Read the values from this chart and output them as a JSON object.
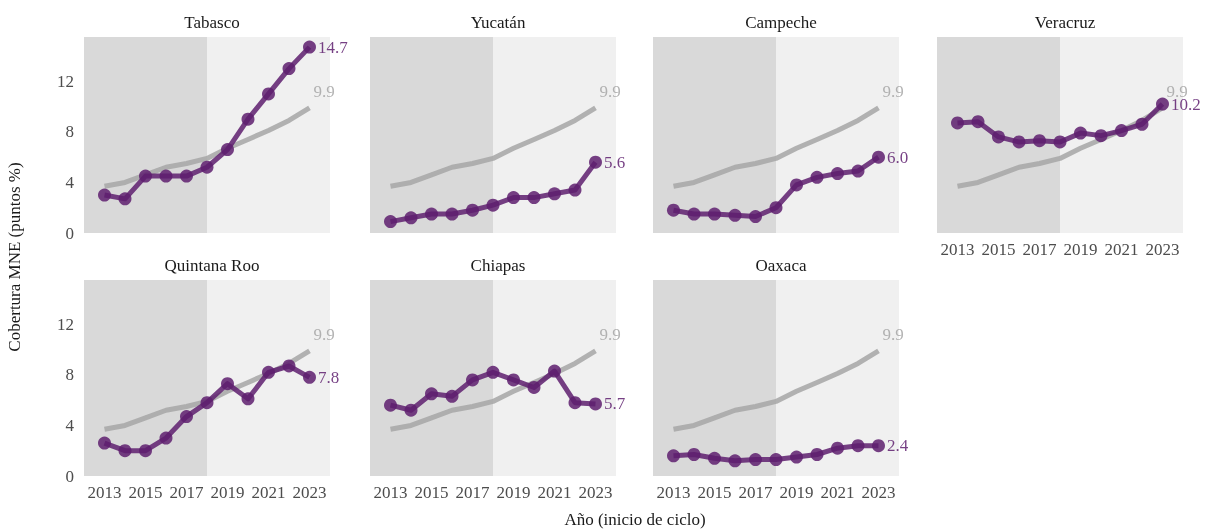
{
  "chart_data": [
    {
      "type": "line",
      "title": "Tabasco",
      "ylabel": "Cobertura MNE (puntos %)",
      "x": [
        2013,
        2014,
        2015,
        2016,
        2017,
        2018,
        2019,
        2020,
        2021,
        2022,
        2023
      ],
      "xlim": [
        2012,
        2024
      ],
      "xticks": [
        2013,
        2015,
        2017,
        2019,
        2021,
        2023
      ],
      "ylim": [
        0,
        15.5
      ],
      "yticks": [
        0,
        4,
        8,
        12
      ],
      "grid": false,
      "tick_labels": "y",
      "bands": [
        {
          "axis": "x",
          "from": 2012,
          "to": 2018,
          "color": "#d9d9d9"
        },
        {
          "axis": "x",
          "from": 2018,
          "to": 2024,
          "color": "#f0f0f0"
        }
      ],
      "series": [
        {
          "color": "#a6a6a6",
          "marker": "none",
          "values": [
            3.7,
            4.0,
            4.6,
            5.2,
            5.5,
            5.9,
            6.7,
            7.4,
            8.1,
            8.9,
            9.9
          ],
          "value_labels": [
            null,
            null,
            null,
            null,
            null,
            null,
            null,
            null,
            null,
            null,
            "9.9"
          ]
        },
        {
          "color": "#5e1f6e",
          "marker": "circle",
          "values": [
            3.0,
            2.7,
            4.5,
            4.5,
            4.5,
            5.2,
            6.6,
            9.0,
            11.0,
            13.0,
            14.7
          ],
          "value_labels": [
            null,
            null,
            null,
            null,
            null,
            null,
            null,
            null,
            null,
            null,
            "14.7"
          ]
        }
      ]
    },
    {
      "type": "line",
      "title": "Yucatán",
      "x": [
        2013,
        2014,
        2015,
        2016,
        2017,
        2018,
        2019,
        2020,
        2021,
        2022,
        2023
      ],
      "xlim": [
        2012,
        2024
      ],
      "xticks": [
        2013,
        2015,
        2017,
        2019,
        2021,
        2023
      ],
      "ylim": [
        0,
        15.5
      ],
      "yticks": [
        0,
        4,
        8,
        12
      ],
      "grid": false,
      "tick_labels": false,
      "bands": [
        {
          "axis": "x",
          "from": 2012,
          "to": 2018,
          "color": "#d9d9d9"
        },
        {
          "axis": "x",
          "from": 2018,
          "to": 2024,
          "color": "#f0f0f0"
        }
      ],
      "series": [
        {
          "color": "#a6a6a6",
          "marker": "none",
          "values": [
            3.7,
            4.0,
            4.6,
            5.2,
            5.5,
            5.9,
            6.7,
            7.4,
            8.1,
            8.9,
            9.9
          ],
          "value_labels": [
            null,
            null,
            null,
            null,
            null,
            null,
            null,
            null,
            null,
            null,
            "9.9"
          ]
        },
        {
          "color": "#5e1f6e",
          "marker": "circle",
          "values": [
            0.9,
            1.2,
            1.5,
            1.5,
            1.8,
            2.2,
            2.8,
            2.8,
            3.1,
            3.4,
            5.6
          ],
          "value_labels": [
            null,
            null,
            null,
            null,
            null,
            null,
            null,
            null,
            null,
            null,
            "5.6"
          ]
        }
      ]
    },
    {
      "type": "line",
      "title": "Campeche",
      "x": [
        2013,
        2014,
        2015,
        2016,
        2017,
        2018,
        2019,
        2020,
        2021,
        2022,
        2023
      ],
      "xlim": [
        2012,
        2024
      ],
      "xticks": [
        2013,
        2015,
        2017,
        2019,
        2021,
        2023
      ],
      "ylim": [
        0,
        15.5
      ],
      "yticks": [
        0,
        4,
        8,
        12
      ],
      "grid": false,
      "tick_labels": false,
      "bands": [
        {
          "axis": "x",
          "from": 2012,
          "to": 2018,
          "color": "#d9d9d9"
        },
        {
          "axis": "x",
          "from": 2018,
          "to": 2024,
          "color": "#f0f0f0"
        }
      ],
      "series": [
        {
          "color": "#a6a6a6",
          "marker": "none",
          "values": [
            3.7,
            4.0,
            4.6,
            5.2,
            5.5,
            5.9,
            6.7,
            7.4,
            8.1,
            8.9,
            9.9
          ],
          "value_labels": [
            null,
            null,
            null,
            null,
            null,
            null,
            null,
            null,
            null,
            null,
            "9.9"
          ]
        },
        {
          "color": "#5e1f6e",
          "marker": "circle",
          "values": [
            1.8,
            1.5,
            1.5,
            1.4,
            1.3,
            2.0,
            3.8,
            4.4,
            4.7,
            4.9,
            6.0
          ],
          "value_labels": [
            null,
            null,
            null,
            null,
            null,
            null,
            null,
            null,
            null,
            null,
            "6.0"
          ]
        }
      ]
    },
    {
      "type": "line",
      "title": "Veracruz",
      "x": [
        2013,
        2014,
        2015,
        2016,
        2017,
        2018,
        2019,
        2020,
        2021,
        2022,
        2023
      ],
      "xlim": [
        2012,
        2024
      ],
      "xticks": [
        2013,
        2015,
        2017,
        2019,
        2021,
        2023
      ],
      "ylim": [
        0,
        15.5
      ],
      "yticks": [
        0,
        4,
        8,
        12
      ],
      "grid": false,
      "tick_labels": "x",
      "bands": [
        {
          "axis": "x",
          "from": 2012,
          "to": 2018,
          "color": "#d9d9d9"
        },
        {
          "axis": "x",
          "from": 2018,
          "to": 2024,
          "color": "#f0f0f0"
        }
      ],
      "series": [
        {
          "color": "#a6a6a6",
          "marker": "none",
          "values": [
            3.7,
            4.0,
            4.6,
            5.2,
            5.5,
            5.9,
            6.7,
            7.4,
            8.1,
            8.9,
            9.9
          ],
          "value_labels": [
            null,
            null,
            null,
            null,
            null,
            null,
            null,
            null,
            null,
            null,
            "9.9"
          ]
        },
        {
          "color": "#5e1f6e",
          "marker": "circle",
          "values": [
            8.7,
            8.8,
            7.6,
            7.2,
            7.3,
            7.2,
            7.9,
            7.7,
            8.1,
            8.6,
            10.2
          ],
          "value_labels": [
            null,
            null,
            null,
            null,
            null,
            null,
            null,
            null,
            null,
            null,
            "10.2"
          ]
        }
      ]
    },
    {
      "type": "line",
      "title": "Quintana Roo",
      "x": [
        2013,
        2014,
        2015,
        2016,
        2017,
        2018,
        2019,
        2020,
        2021,
        2022,
        2023
      ],
      "xlim": [
        2012,
        2024
      ],
      "xticks": [
        2013,
        2015,
        2017,
        2019,
        2021,
        2023
      ],
      "ylim": [
        0,
        15.5
      ],
      "yticks": [
        0,
        4,
        8,
        12
      ],
      "grid": false,
      "bands": [
        {
          "axis": "x",
          "from": 2012,
          "to": 2018,
          "color": "#d9d9d9"
        },
        {
          "axis": "x",
          "from": 2018,
          "to": 2024,
          "color": "#f0f0f0"
        }
      ],
      "series": [
        {
          "color": "#a6a6a6",
          "marker": "none",
          "values": [
            3.7,
            4.0,
            4.6,
            5.2,
            5.5,
            5.9,
            6.7,
            7.4,
            8.1,
            8.9,
            9.9
          ],
          "value_labels": [
            null,
            null,
            null,
            null,
            null,
            null,
            null,
            null,
            null,
            null,
            "9.9"
          ]
        },
        {
          "color": "#5e1f6e",
          "marker": "circle",
          "values": [
            2.6,
            2.0,
            2.0,
            3.0,
            4.7,
            5.8,
            7.3,
            6.1,
            8.2,
            8.7,
            7.8
          ],
          "value_labels": [
            null,
            null,
            null,
            null,
            null,
            null,
            null,
            null,
            null,
            null,
            "7.8"
          ]
        }
      ]
    },
    {
      "type": "line",
      "title": "Chiapas",
      "xlabel": "Año (inicio de ciclo)",
      "x": [
        2013,
        2014,
        2015,
        2016,
        2017,
        2018,
        2019,
        2020,
        2021,
        2022,
        2023
      ],
      "xlim": [
        2012,
        2024
      ],
      "xticks": [
        2013,
        2015,
        2017,
        2019,
        2021,
        2023
      ],
      "ylim": [
        0,
        15.5
      ],
      "yticks": [
        0,
        4,
        8,
        12
      ],
      "grid": false,
      "tick_labels": "x",
      "bands": [
        {
          "axis": "x",
          "from": 2012,
          "to": 2018,
          "color": "#d9d9d9"
        },
        {
          "axis": "x",
          "from": 2018,
          "to": 2024,
          "color": "#f0f0f0"
        }
      ],
      "series": [
        {
          "color": "#a6a6a6",
          "marker": "none",
          "values": [
            3.7,
            4.0,
            4.6,
            5.2,
            5.5,
            5.9,
            6.7,
            7.4,
            8.1,
            8.9,
            9.9
          ],
          "value_labels": [
            null,
            null,
            null,
            null,
            null,
            null,
            null,
            null,
            null,
            null,
            "9.9"
          ]
        },
        {
          "color": "#5e1f6e",
          "marker": "circle",
          "values": [
            5.6,
            5.2,
            6.5,
            6.3,
            7.6,
            8.2,
            7.6,
            7.0,
            8.3,
            5.8,
            5.7
          ],
          "value_labels": [
            null,
            null,
            null,
            null,
            null,
            null,
            null,
            null,
            null,
            null,
            "5.7"
          ]
        }
      ]
    },
    {
      "type": "line",
      "title": "Oaxaca",
      "x": [
        2013,
        2014,
        2015,
        2016,
        2017,
        2018,
        2019,
        2020,
        2021,
        2022,
        2023
      ],
      "xlim": [
        2012,
        2024
      ],
      "xticks": [
        2013,
        2015,
        2017,
        2019,
        2021,
        2023
      ],
      "ylim": [
        0,
        15.5
      ],
      "yticks": [
        0,
        4,
        8,
        12
      ],
      "grid": false,
      "tick_labels": "x",
      "bands": [
        {
          "axis": "x",
          "from": 2012,
          "to": 2018,
          "color": "#d9d9d9"
        },
        {
          "axis": "x",
          "from": 2018,
          "to": 2024,
          "color": "#f0f0f0"
        }
      ],
      "series": [
        {
          "color": "#a6a6a6",
          "marker": "none",
          "values": [
            3.7,
            4.0,
            4.6,
            5.2,
            5.5,
            5.9,
            6.7,
            7.4,
            8.1,
            8.9,
            9.9
          ],
          "value_labels": [
            null,
            null,
            null,
            null,
            null,
            null,
            null,
            null,
            null,
            null,
            "9.9"
          ]
        },
        {
          "color": "#5e1f6e",
          "marker": "circle",
          "values": [
            1.6,
            1.7,
            1.4,
            1.2,
            1.3,
            1.3,
            1.5,
            1.7,
            2.2,
            2.4,
            2.4
          ],
          "value_labels": [
            null,
            null,
            null,
            null,
            null,
            null,
            null,
            null,
            null,
            null,
            "2.4"
          ]
        }
      ]
    }
  ]
}
